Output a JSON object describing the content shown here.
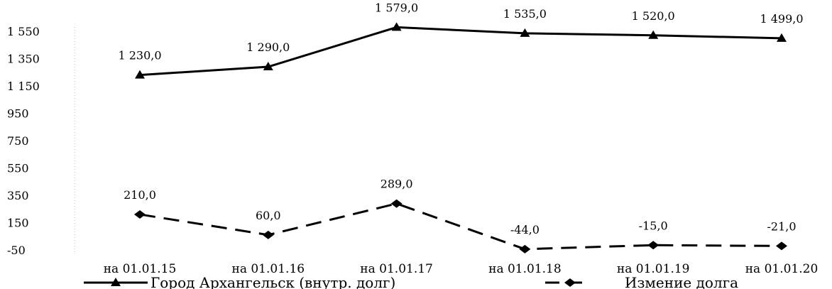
{
  "chart_data": {
    "type": "line",
    "categories": [
      "на 01.01.15",
      "на 01.01.16",
      "на 01.01.17",
      "на 01.01.18",
      "на 01.01.19",
      "на 01.01.20"
    ],
    "y_ticks": [
      "1 550",
      "1 350",
      "1 150",
      "950",
      "750",
      "550",
      "350",
      "150",
      "-50"
    ],
    "y_tick_values": [
      1550,
      1350,
      1150,
      950,
      750,
      550,
      350,
      150,
      -50
    ],
    "ylim": [
      -50,
      1550
    ],
    "grid": false,
    "legend_position": "bottom",
    "series": [
      {
        "name": "Город Архангельск (внутр. долг)",
        "values": [
          1230.0,
          1290.0,
          1579.0,
          1535.0,
          1520.0,
          1499.0
        ],
        "labels": [
          "1 230,0",
          "1 290,0",
          "1 579,0",
          "1 535,0",
          "1 520,0",
          "1 499,0"
        ],
        "line_style": "solid",
        "marker": "triangle",
        "color": "#000000"
      },
      {
        "name": "Измение долга",
        "values": [
          210.0,
          60.0,
          289.0,
          -44.0,
          -15.0,
          -21.0
        ],
        "labels": [
          "210,0",
          "60,0",
          "289,0",
          "-44,0",
          "-15,0",
          "-21,0"
        ],
        "line_style": "dashed",
        "marker": "diamond",
        "color": "#000000"
      }
    ]
  }
}
